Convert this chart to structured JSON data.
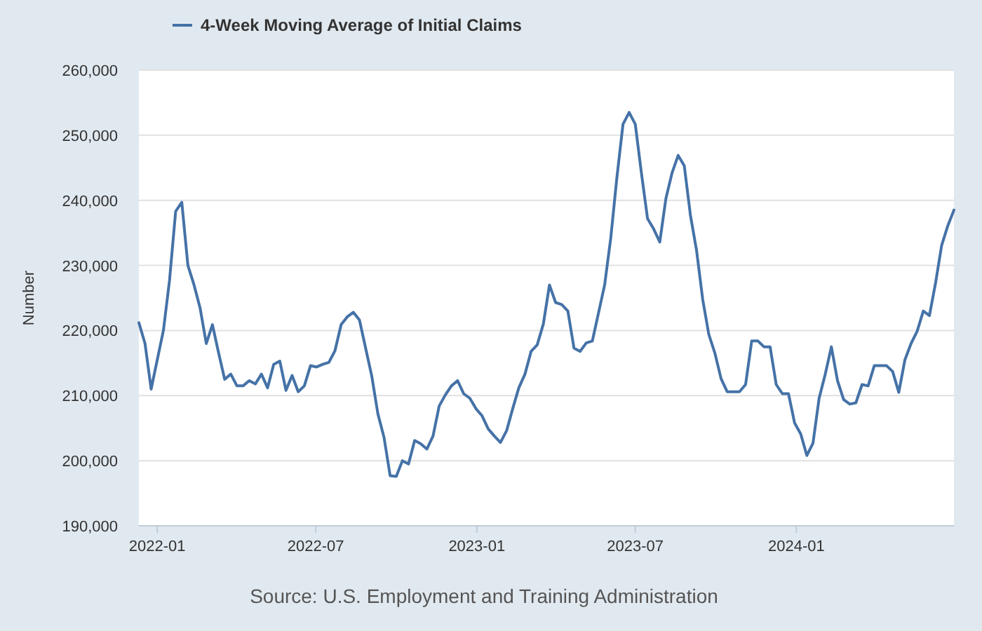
{
  "chart_data": {
    "type": "line",
    "ylabel": "Number",
    "annotations": [
      "Source: U.S. Employment and Training Administration"
    ],
    "legend": "top left",
    "grid": "y",
    "marker": "none",
    "line_style": "solid",
    "xlim": [
      "2021-12-11",
      "2024-06-29"
    ],
    "xticks": [
      "2022-01",
      "2022-07",
      "2023-01",
      "2023-07",
      "2024-01"
    ],
    "ylim": [
      190000,
      260000
    ],
    "yticks": [
      {
        "value": 190000,
        "label": "190,000"
      },
      {
        "value": 200000,
        "label": "200,000"
      },
      {
        "value": 210000,
        "label": "210,000"
      },
      {
        "value": 220000,
        "label": "220,000"
      },
      {
        "value": 230000,
        "label": "230,000"
      },
      {
        "value": 240000,
        "label": "240,000"
      },
      {
        "value": 250000,
        "label": "250,000"
      },
      {
        "value": 260000,
        "label": "260,000"
      }
    ],
    "x": [
      "2021-12-11",
      "2021-12-18",
      "2021-12-25",
      "2022-01-01",
      "2022-01-08",
      "2022-01-15",
      "2022-01-22",
      "2022-01-29",
      "2022-02-05",
      "2022-02-12",
      "2022-02-19",
      "2022-02-26",
      "2022-03-05",
      "2022-03-12",
      "2022-03-19",
      "2022-03-26",
      "2022-04-02",
      "2022-04-09",
      "2022-04-16",
      "2022-04-23",
      "2022-04-30",
      "2022-05-07",
      "2022-05-14",
      "2022-05-21",
      "2022-05-28",
      "2022-06-04",
      "2022-06-11",
      "2022-06-18",
      "2022-06-25",
      "2022-07-02",
      "2022-07-09",
      "2022-07-16",
      "2022-07-23",
      "2022-07-30",
      "2022-08-06",
      "2022-08-13",
      "2022-08-20",
      "2022-08-27",
      "2022-09-03",
      "2022-09-10",
      "2022-09-17",
      "2022-09-24",
      "2022-10-01",
      "2022-10-08",
      "2022-10-15",
      "2022-10-22",
      "2022-10-29",
      "2022-11-05",
      "2022-11-12",
      "2022-11-19",
      "2022-11-26",
      "2022-12-03",
      "2022-12-10",
      "2022-12-17",
      "2022-12-24",
      "2022-12-31",
      "2023-01-07",
      "2023-01-14",
      "2023-01-21",
      "2023-01-28",
      "2023-02-04",
      "2023-02-11",
      "2023-02-18",
      "2023-02-25",
      "2023-03-04",
      "2023-03-11",
      "2023-03-18",
      "2023-03-25",
      "2023-04-01",
      "2023-04-08",
      "2023-04-15",
      "2023-04-22",
      "2023-04-29",
      "2023-05-06",
      "2023-05-13",
      "2023-05-20",
      "2023-05-27",
      "2023-06-03",
      "2023-06-10",
      "2023-06-17",
      "2023-06-24",
      "2023-07-01",
      "2023-07-08",
      "2023-07-15",
      "2023-07-22",
      "2023-07-29",
      "2023-08-05",
      "2023-08-12",
      "2023-08-19",
      "2023-08-26",
      "2023-09-02",
      "2023-09-09",
      "2023-09-16",
      "2023-09-23",
      "2023-09-30",
      "2023-10-07",
      "2023-10-14",
      "2023-10-21",
      "2023-10-28",
      "2023-11-04",
      "2023-11-11",
      "2023-11-18",
      "2023-11-25",
      "2023-12-02",
      "2023-12-09",
      "2023-12-16",
      "2023-12-23",
      "2023-12-30",
      "2024-01-06",
      "2024-01-13",
      "2024-01-20",
      "2024-01-27",
      "2024-02-03",
      "2024-02-10",
      "2024-02-17",
      "2024-02-24",
      "2024-03-02",
      "2024-03-09",
      "2024-03-16",
      "2024-03-23",
      "2024-03-30",
      "2024-04-06",
      "2024-04-13",
      "2024-04-20",
      "2024-04-27",
      "2024-05-04",
      "2024-05-11",
      "2024-05-18",
      "2024-05-25",
      "2024-06-01",
      "2024-06-08",
      "2024-06-15",
      "2024-06-22",
      "2024-06-29"
    ],
    "series": [
      {
        "name": "4-Week Moving Average of Initial Claims",
        "color": "#4572a7",
        "values": [
          221200,
          218000,
          211000,
          215500,
          220000,
          227700,
          238300,
          239700,
          230000,
          227000,
          223400,
          218000,
          220900,
          216600,
          212500,
          213300,
          211500,
          211500,
          212300,
          211800,
          213300,
          211200,
          214800,
          215300,
          210800,
          213100,
          210600,
          211500,
          214600,
          214400,
          214800,
          215100,
          216900,
          220900,
          222100,
          222800,
          221600,
          217300,
          213000,
          207200,
          203600,
          197700,
          197600,
          200000,
          199500,
          203100,
          202600,
          201800,
          203800,
          208400,
          210100,
          211500,
          212300,
          210300,
          209600,
          208000,
          206900,
          204900,
          203800,
          202800,
          204600,
          208000,
          211200,
          213300,
          216800,
          217800,
          221000,
          227000,
          224300,
          224000,
          223000,
          217300,
          216800,
          218100,
          218400,
          222700,
          227000,
          234200,
          243500,
          251700,
          253500,
          251700,
          244200,
          237200,
          235600,
          233600,
          240300,
          244200,
          246900,
          245300,
          237700,
          232300,
          224800,
          219400,
          216500,
          212600,
          210600,
          210600,
          210600,
          211700,
          218400,
          218400,
          217500,
          217500,
          211700,
          210300,
          210300,
          205800,
          204100,
          200800,
          202700,
          209600,
          213300,
          217500,
          212300,
          209400,
          208700,
          208900,
          211700,
          211500,
          214600,
          214600,
          214600,
          213700,
          210500,
          215500,
          218000,
          219900,
          223000,
          222300,
          227300,
          233100,
          236100,
          238500
        ]
      }
    ]
  }
}
